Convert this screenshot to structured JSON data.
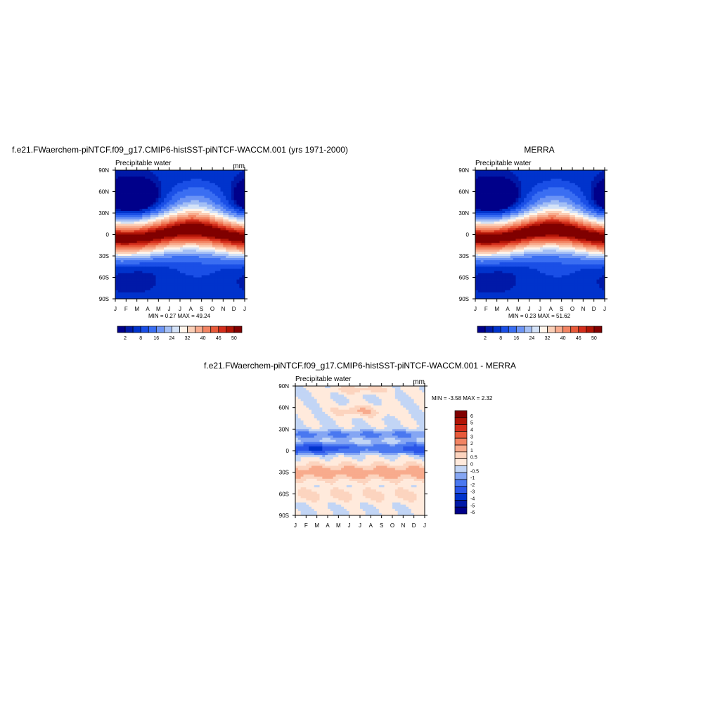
{
  "months": [
    "J",
    "F",
    "M",
    "A",
    "M",
    "J",
    "J",
    "A",
    "S",
    "O",
    "N",
    "D",
    "J"
  ],
  "lat_labels": [
    "90N",
    "60N",
    "30N",
    "0",
    "30S",
    "60S",
    "90S"
  ],
  "colors": {
    "sequential": [
      "#00008a",
      "#0019a8",
      "#0033cc",
      "#1a4fe6",
      "#3a6ef2",
      "#6c94f5",
      "#a4bff5",
      "#d4e2f7",
      "#fff4ea",
      "#fccfb6",
      "#f8ab8d",
      "#f28463",
      "#e85a3a",
      "#d42e1c",
      "#b01406",
      "#800000"
    ],
    "diverging": [
      "#00008a",
      "#0019a8",
      "#0033cc",
      "#2a55e8",
      "#4a78f0",
      "#85a6f3",
      "#c2d5f5",
      "#ffeadc",
      "#fcd4bf",
      "#f8ab8d",
      "#f28463",
      "#e85a3a",
      "#d42e1c",
      "#b01406",
      "#800000"
    ]
  },
  "chart_data": [
    {
      "type": "heatmap",
      "title": "f.e21.FWaerchem-piNTCF.f09_g17.CMIP6-histSST-piNTCF-WACCM.001 (yrs 1971-2000)",
      "left_label": "Precipitable water",
      "units": "mm",
      "x_ticks": [
        "J",
        "F",
        "M",
        "A",
        "M",
        "J",
        "J",
        "A",
        "S",
        "O",
        "N",
        "D",
        "J"
      ],
      "y_ticks": [
        "90N",
        "60N",
        "30N",
        "0",
        "30S",
        "60S",
        "90S"
      ],
      "stats": "MIN =   0.27 MAX =  49.24",
      "colorbar": {
        "orientation": "horizontal",
        "labels": [
          "2",
          "8",
          "16",
          "24",
          "32",
          "40",
          "46",
          "50"
        ]
      }
    },
    {
      "type": "heatmap",
      "title": "MERRA",
      "left_label": "Precipitable water",
      "units": "",
      "x_ticks": [
        "J",
        "F",
        "M",
        "A",
        "M",
        "J",
        "J",
        "A",
        "S",
        "O",
        "N",
        "D",
        "J"
      ],
      "y_ticks": [
        "90N",
        "60N",
        "30N",
        "0",
        "30S",
        "60S",
        "90S"
      ],
      "stats": "MIN =   0.23 MAX =  51.62",
      "colorbar": {
        "orientation": "horizontal",
        "labels": [
          "2",
          "8",
          "16",
          "24",
          "32",
          "40",
          "46",
          "50"
        ]
      }
    },
    {
      "type": "heatmap",
      "title": "f.e21.FWaerchem-piNTCF.f09_g17.CMIP6-histSST-piNTCF-WACCM.001 - MERRA",
      "left_label": "Precipitable water",
      "units": "mm",
      "x_ticks": [
        "J",
        "F",
        "M",
        "A",
        "M",
        "J",
        "J",
        "A",
        "S",
        "O",
        "N",
        "D",
        "J"
      ],
      "y_ticks": [
        "90N",
        "60N",
        "30N",
        "0",
        "30S",
        "60S",
        "90S"
      ],
      "stats": "MIN =  -3.58 MAX =   2.32",
      "colorbar": {
        "orientation": "vertical",
        "labels": [
          "6",
          "5",
          "4",
          "3",
          "2",
          "1",
          "0.5",
          "0",
          "-0.5",
          "-1",
          "-2",
          "-3",
          "-4",
          "-5",
          "-6"
        ]
      }
    }
  ]
}
